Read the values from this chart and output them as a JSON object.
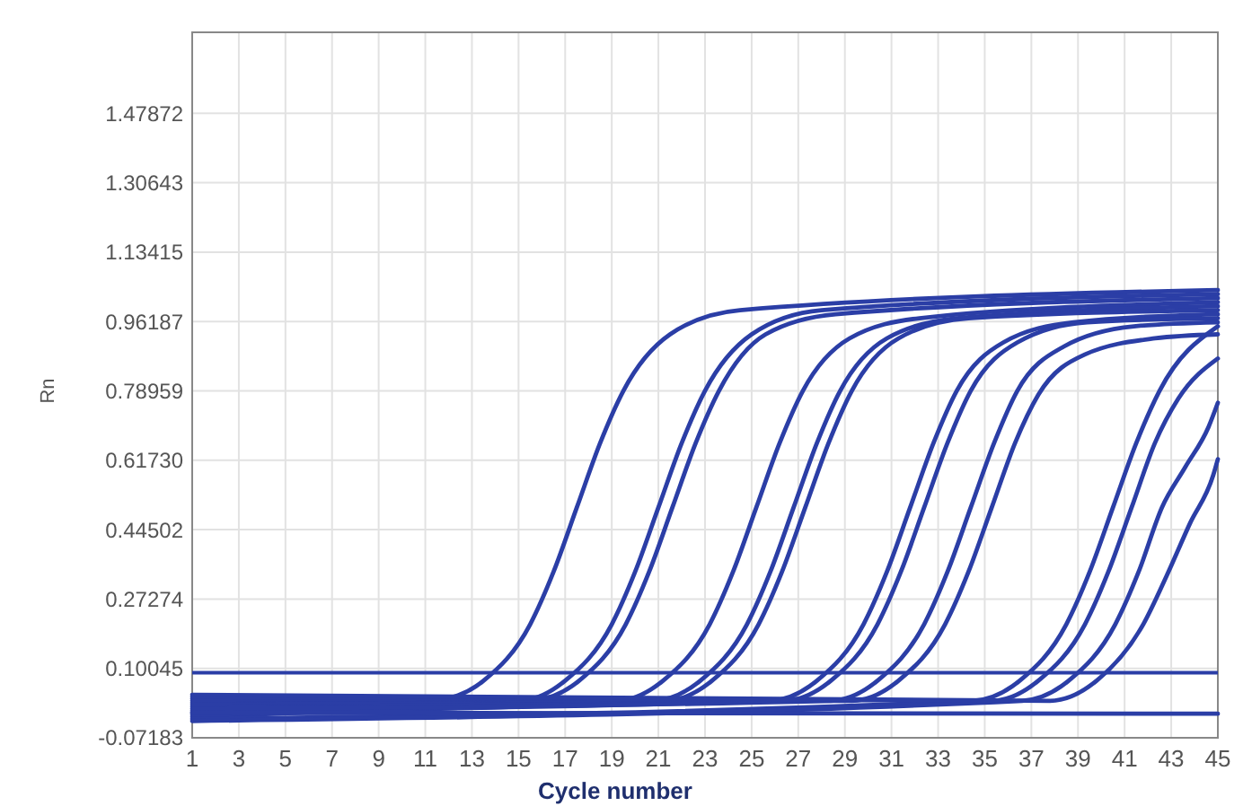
{
  "chart_data": {
    "type": "line",
    "xlabel": "Cycle number",
    "ylabel": "Rn",
    "xlim": [
      1,
      45
    ],
    "xticks": [
      1,
      3,
      5,
      7,
      9,
      11,
      13,
      15,
      17,
      19,
      21,
      23,
      25,
      27,
      29,
      31,
      33,
      35,
      37,
      39,
      41,
      43,
      45
    ],
    "ylim": [
      -0.07183,
      1.68
    ],
    "yticks": [
      -0.07183,
      0.10045,
      0.27274,
      0.44502,
      {
        "value": 0.6173,
        "label": "0.61730"
      },
      0.78959,
      0.96187,
      1.13415,
      1.30643,
      1.47872
    ],
    "grid": true,
    "marker": "none",
    "line_style": "solid",
    "ref_lines": [
      {
        "axis": "y",
        "value": 0.09,
        "color": "#2b3ea6"
      }
    ],
    "series": [
      {
        "color": "#2b3ea6",
        "x": [
          1,
          11.5,
          13.5,
          15.5,
          16.5,
          17.5,
          18.5,
          19.5,
          21.5,
          24.5,
          45
        ],
        "values": [
          -0.02,
          0.02,
          0.07,
          0.21,
          0.34,
          0.5,
          0.66,
          0.79,
          0.93,
          0.99,
          1.04
        ]
      },
      {
        "color": "#2b3ea6",
        "x": [
          1,
          15,
          17,
          19,
          20,
          21,
          22,
          23,
          25,
          28,
          45
        ],
        "values": [
          0.02,
          0.02,
          0.07,
          0.21,
          0.34,
          0.5,
          0.66,
          0.79,
          0.93,
          0.99,
          1.03
        ]
      },
      {
        "color": "#2b3ea6",
        "x": [
          1,
          15.6,
          17.6,
          19.6,
          20.6,
          21.6,
          22.6,
          23.6,
          25.6,
          28.6,
          45
        ],
        "values": [
          -0.015,
          0.02,
          0.07,
          0.21,
          0.34,
          0.5,
          0.66,
          0.79,
          0.93,
          0.98,
          1.02
        ]
      },
      {
        "color": "#2b3ea6",
        "x": [
          1,
          19.2,
          21.2,
          23.2,
          24.2,
          25.2,
          26.2,
          27.2,
          29.2,
          32.2,
          45
        ],
        "values": [
          0.015,
          0.02,
          0.07,
          0.21,
          0.34,
          0.5,
          0.66,
          0.79,
          0.92,
          0.97,
          1.01
        ]
      },
      {
        "color": "#2b3ea6",
        "x": [
          1,
          20.8,
          22.8,
          24.8,
          25.8,
          26.8,
          27.8,
          28.8,
          30.8,
          33.8,
          45
        ],
        "values": [
          -0.01,
          0.02,
          0.07,
          0.21,
          0.34,
          0.5,
          0.66,
          0.79,
          0.92,
          0.97,
          1
        ]
      },
      {
        "color": "#2b3ea6",
        "x": [
          1,
          21.3,
          23.3,
          25.3,
          26.3,
          27.3,
          28.3,
          29.3,
          31.3,
          34.3,
          45
        ],
        "values": [
          0.01,
          0.02,
          0.07,
          0.21,
          0.34,
          0.5,
          0.66,
          0.79,
          0.92,
          0.97,
          0.99
        ]
      },
      {
        "color": "#2b3ea6",
        "x": [
          1,
          25.8,
          27.8,
          29.8,
          30.8,
          31.8,
          32.8,
          33.8,
          35.8,
          38.8,
          45
        ],
        "values": [
          -0.005,
          0.02,
          0.07,
          0.21,
          0.34,
          0.5,
          0.66,
          0.79,
          0.91,
          0.96,
          0.98
        ]
      },
      {
        "color": "#2b3ea6",
        "x": [
          1,
          26.4,
          28.4,
          30.4,
          31.4,
          32.4,
          33.4,
          34.4,
          36.4,
          39.4,
          45
        ],
        "values": [
          0.005,
          0.02,
          0.07,
          0.21,
          0.34,
          0.5,
          0.66,
          0.79,
          0.91,
          0.96,
          0.97
        ]
      },
      {
        "color": "#2b3ea6",
        "x": [
          1,
          28.4,
          30.4,
          32.4,
          33.4,
          34.4,
          35.4,
          36.4,
          38.4,
          41.4,
          45
        ],
        "values": [
          0,
          0.02,
          0.07,
          0.21,
          0.34,
          0.5,
          0.66,
          0.79,
          0.9,
          0.95,
          0.96
        ]
      },
      {
        "color": "#2b3ea6",
        "x": [
          1,
          29.3,
          31.3,
          33.3,
          34.3,
          35.3,
          36.3,
          37.3,
          39.3,
          42.3,
          45
        ],
        "values": [
          0.025,
          0.02,
          0.07,
          0.21,
          0.34,
          0.5,
          0.66,
          0.78,
          0.88,
          0.92,
          0.93
        ]
      },
      {
        "color": "#2b3ea6",
        "x": [
          1,
          34.5,
          36.5,
          38.5,
          39.5,
          40.5,
          41.5,
          42.5,
          45
        ],
        "values": [
          -0.025,
          0.02,
          0.07,
          0.21,
          0.34,
          0.5,
          0.66,
          0.79,
          0.95
        ]
      },
      {
        "color": "#2b3ea6",
        "x": [
          1,
          35.3,
          37.3,
          39.3,
          40.3,
          41.3,
          42.3,
          43.3,
          45
        ],
        "values": [
          0.03,
          0.02,
          0.07,
          0.21,
          0.34,
          0.5,
          0.66,
          0.77,
          0.87
        ]
      },
      {
        "color": "#2b3ea6",
        "x": [
          1,
          36.6,
          38.6,
          40.6,
          41.6,
          42.6,
          43.6,
          44.6,
          45
        ],
        "values": [
          -0.03,
          0.02,
          0.07,
          0.21,
          0.34,
          0.5,
          0.6,
          0.7,
          0.76
        ]
      },
      {
        "color": "#2b3ea6",
        "x": [
          1,
          37.8,
          39.8,
          41.8,
          42.8,
          43.8,
          44.8,
          45
        ],
        "values": [
          0.035,
          0.02,
          0.07,
          0.21,
          0.33,
          0.46,
          0.58,
          0.62
        ]
      },
      {
        "color": "#2b3ea6",
        "x": [
          1,
          45
        ],
        "values": [
          -0.01,
          -0.012
        ]
      }
    ]
  }
}
